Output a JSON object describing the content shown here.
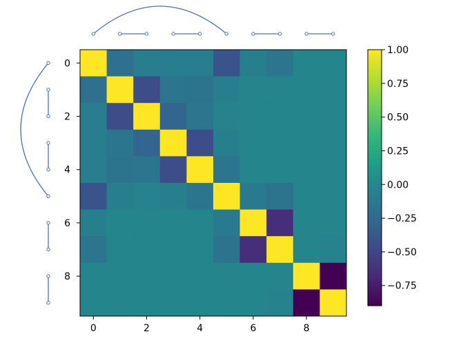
{
  "chart_data": {
    "type": "heatmap",
    "title": "",
    "xlabel": "",
    "ylabel": "",
    "size": 10,
    "x_ticks": [
      0,
      2,
      4,
      6,
      8
    ],
    "y_ticks": [
      0,
      2,
      4,
      6,
      8
    ],
    "matrix": [
      [
        1.0,
        -0.2,
        -0.1,
        -0.1,
        -0.1,
        -0.4,
        -0.08,
        -0.15,
        -0.03,
        -0.03
      ],
      [
        -0.2,
        1.0,
        -0.45,
        -0.15,
        -0.18,
        -0.08,
        -0.03,
        -0.03,
        -0.03,
        -0.03
      ],
      [
        -0.1,
        -0.45,
        1.0,
        -0.28,
        -0.15,
        -0.05,
        -0.03,
        -0.03,
        -0.03,
        -0.03
      ],
      [
        -0.1,
        -0.15,
        -0.28,
        1.0,
        -0.45,
        -0.08,
        -0.03,
        -0.03,
        -0.03,
        -0.03
      ],
      [
        -0.1,
        -0.18,
        -0.15,
        -0.45,
        1.0,
        -0.15,
        -0.03,
        -0.03,
        -0.03,
        -0.03
      ],
      [
        -0.4,
        -0.08,
        -0.05,
        -0.08,
        -0.15,
        1.0,
        -0.12,
        -0.18,
        -0.03,
        -0.03
      ],
      [
        -0.08,
        -0.03,
        -0.03,
        -0.03,
        -0.03,
        -0.12,
        1.0,
        -0.65,
        -0.03,
        -0.03
      ],
      [
        -0.15,
        -0.03,
        -0.03,
        -0.03,
        -0.03,
        -0.18,
        -0.65,
        1.0,
        -0.03,
        -0.05
      ],
      [
        -0.03,
        -0.03,
        -0.03,
        -0.03,
        -0.03,
        -0.03,
        -0.03,
        -0.03,
        1.0,
        -0.9
      ],
      [
        -0.03,
        -0.03,
        -0.03,
        -0.03,
        -0.03,
        -0.03,
        -0.03,
        -0.05,
        -0.9,
        1.0
      ]
    ],
    "colorbar": {
      "colormap": "viridis",
      "range": [
        -0.9,
        1.0
      ],
      "ticks": [
        1.0,
        0.75,
        0.5,
        0.25,
        0.0,
        -0.25,
        -0.5,
        -0.75
      ],
      "tick_labels": [
        "1.00",
        "0.75",
        "0.50",
        "0.25",
        "0.00",
        "−0.25",
        "−0.50",
        "−0.75"
      ]
    },
    "dendrogram": {
      "color": "#4c72b0",
      "leaves": [
        0,
        1,
        2,
        3,
        4,
        5,
        6,
        7,
        8,
        9
      ],
      "pairs": [
        [
          1,
          2
        ],
        [
          3,
          4
        ],
        [
          6,
          7
        ],
        [
          8,
          9
        ]
      ],
      "arc": [
        0,
        5
      ]
    }
  }
}
